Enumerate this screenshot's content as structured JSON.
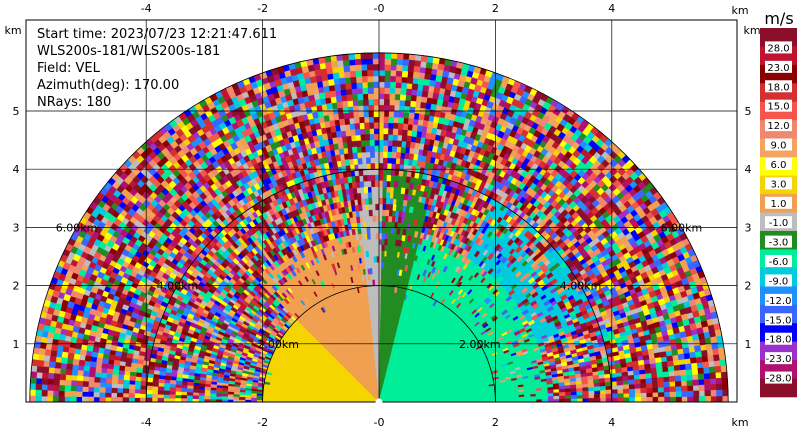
{
  "chart_data": {
    "type": "heatmap",
    "subtype": "radar-ppi-sector",
    "info": {
      "start_time": "Start time: 2023/07/23 12:21:47.611",
      "instrument": "WLS200s-181/WLS200s-181",
      "field": "Field: VEL",
      "azimuth": "Azimuth(deg): 170.00",
      "nrays": "NRays: 180"
    },
    "x_unit": "km",
    "y_unit": "km",
    "x_ticks": [
      "-4",
      "-2",
      "-0",
      "2",
      "4"
    ],
    "x_tick_values": [
      -4,
      -2,
      0,
      2,
      4
    ],
    "y_ticks": [
      "1",
      "2",
      "3",
      "4",
      "5"
    ],
    "y_tick_values": [
      1,
      2,
      3,
      4,
      5
    ],
    "xlim": [
      -6,
      6
    ],
    "ylim": [
      0,
      6
    ],
    "max_range_km": 6,
    "range_rings": [
      {
        "radius_km": 2,
        "label": "2.00km"
      },
      {
        "radius_km": 4,
        "label": "4.00km"
      },
      {
        "radius_km": 6,
        "label": "6.00km"
      }
    ],
    "colorbar": {
      "unit": "m/s",
      "labels": [
        "28.0",
        "23.0",
        "18.0",
        "15.0",
        "12.0",
        "9.0",
        "6.0",
        "3.0",
        "1.0",
        "-1.0",
        "-3.0",
        "-6.0",
        "-9.0",
        "-12.0",
        "-15.0",
        "-18.0",
        "-23.0",
        "-28.0"
      ],
      "colors": [
        "#8b0f2a",
        "#c0132f",
        "#8b0000",
        "#d62f2f",
        "#f4554d",
        "#f08870",
        "#f4a460",
        "#ffff00",
        "#f5d500",
        "#f0a050",
        "#bdbdbd",
        "#228b22",
        "#00ee99",
        "#00ccdd",
        "#1e90ff",
        "#3a66ff",
        "#0000ff",
        "#9932cc",
        "#b01070",
        "#8b0f2a"
      ]
    },
    "velocity_regions": [
      {
        "az_from": -90,
        "az_to": -45,
        "range_to_km": 2,
        "value": 4.5
      },
      {
        "az_from": -45,
        "az_to": -6,
        "range_to_km": 2.9,
        "value": 2.0
      },
      {
        "az_from": -6,
        "az_to": 1,
        "range_to_km": 4.3,
        "value": 0.0
      },
      {
        "az_from": 1,
        "az_to": 14,
        "range_to_km": 4.0,
        "value": -2.0
      },
      {
        "az_from": 14,
        "az_to": 90,
        "range_to_km": 2.9,
        "value": -4.5
      },
      {
        "az_from": 30,
        "az_to": 70,
        "range_from_km": 2.9,
        "range_to_km": 4.0,
        "value": -8.0
      }
    ]
  }
}
